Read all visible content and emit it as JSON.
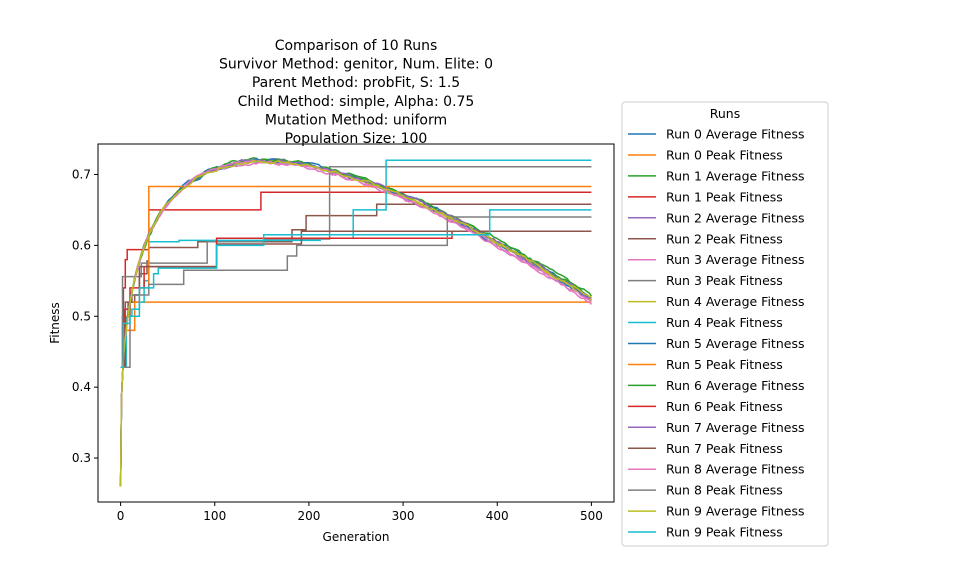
{
  "chart_data": {
    "type": "line",
    "title_lines": [
      "Comparison of 10 Runs",
      "Survivor Method: genitor, Num. Elite: 0",
      "Parent Method: probFit, S: 1.5",
      "Child Method: simple, Alpha: 0.75",
      "Mutation Method: uniform",
      "Population Size: 100"
    ],
    "xlabel": "Generation",
    "ylabel": "Fitness",
    "xlim": [
      -24,
      524
    ],
    "ylim": [
      0.238,
      0.743
    ],
    "xticks": [
      0,
      100,
      200,
      300,
      400,
      500
    ],
    "yticks": [
      0.3,
      0.4,
      0.5,
      0.6,
      0.7
    ],
    "grid": false,
    "legend": {
      "title": "Runs",
      "placement": "outside-right"
    },
    "series": [
      {
        "name": "Run 0 Average Fitness",
        "color": "#1f77b4",
        "kind": "avg",
        "end": 0.522
      },
      {
        "name": "Run 0 Peak Fitness",
        "color": "#ff7f0e",
        "kind": "peak",
        "points": [
          [
            0,
            0.428
          ],
          [
            5,
            0.48
          ],
          [
            15,
            0.52
          ],
          [
            500,
            0.52
          ]
        ]
      },
      {
        "name": "Run 1 Average Fitness",
        "color": "#2ca02c",
        "kind": "avg",
        "end": 0.528
      },
      {
        "name": "Run 1 Peak Fitness",
        "color": "#d62728",
        "kind": "peak",
        "points": [
          [
            0,
            0.428
          ],
          [
            2,
            0.5
          ],
          [
            3,
            0.54
          ],
          [
            5,
            0.58
          ],
          [
            7,
            0.594
          ],
          [
            28,
            0.594
          ],
          [
            30,
            0.65
          ],
          [
            147,
            0.65
          ],
          [
            149,
            0.675
          ],
          [
            500,
            0.675
          ]
        ]
      },
      {
        "name": "Run 2 Average Fitness",
        "color": "#9467bd",
        "kind": "avg",
        "end": 0.524
      },
      {
        "name": "Run 2 Peak Fitness",
        "color": "#8c564b",
        "kind": "peak",
        "points": [
          [
            0,
            0.428
          ],
          [
            3,
            0.5
          ],
          [
            8,
            0.52
          ],
          [
            15,
            0.53
          ],
          [
            20,
            0.56
          ],
          [
            28,
            0.578
          ],
          [
            30,
            0.597
          ],
          [
            80,
            0.597
          ],
          [
            82,
            0.605
          ],
          [
            180,
            0.605
          ],
          [
            182,
            0.622
          ],
          [
            195,
            0.622
          ],
          [
            197,
            0.642
          ],
          [
            270,
            0.642
          ],
          [
            272,
            0.658
          ],
          [
            500,
            0.658
          ]
        ]
      },
      {
        "name": "Run 3 Average Fitness",
        "color": "#e377c2",
        "kind": "avg",
        "end": 0.518
      },
      {
        "name": "Run 3 Peak Fitness",
        "color": "#7f7f7f",
        "kind": "peak",
        "points": [
          [
            0,
            0.428
          ],
          [
            2,
            0.556
          ],
          [
            20,
            0.556
          ],
          [
            22,
            0.575
          ],
          [
            90,
            0.575
          ],
          [
            92,
            0.605
          ],
          [
            150,
            0.605
          ],
          [
            152,
            0.609
          ],
          [
            220,
            0.609
          ],
          [
            222,
            0.711
          ],
          [
            500,
            0.711
          ]
        ]
      },
      {
        "name": "Run 4 Average Fitness",
        "color": "#bcbd22",
        "kind": "avg",
        "end": 0.523
      },
      {
        "name": "Run 4 Peak Fitness",
        "color": "#17becf",
        "kind": "peak",
        "points": [
          [
            0,
            0.428
          ],
          [
            6,
            0.5
          ],
          [
            12,
            0.51
          ],
          [
            20,
            0.52
          ],
          [
            25,
            0.55
          ],
          [
            30,
            0.605
          ],
          [
            60,
            0.605
          ],
          [
            62,
            0.607
          ],
          [
            210,
            0.607
          ],
          [
            212,
            0.61
          ],
          [
            245,
            0.61
          ],
          [
            247,
            0.65
          ],
          [
            280,
            0.65
          ],
          [
            282,
            0.72
          ],
          [
            500,
            0.72
          ]
        ]
      },
      {
        "name": "Run 5 Average Fitness",
        "color": "#1f77b4",
        "kind": "avg",
        "end": 0.527
      },
      {
        "name": "Run 5 Peak Fitness",
        "color": "#ff7f0e",
        "kind": "peak",
        "points": [
          [
            0,
            0.428
          ],
          [
            4,
            0.5
          ],
          [
            10,
            0.52
          ],
          [
            20,
            0.54
          ],
          [
            30,
            0.683
          ],
          [
            500,
            0.683
          ]
        ]
      },
      {
        "name": "Run 6 Average Fitness",
        "color": "#2ca02c",
        "kind": "avg",
        "end": 0.529
      },
      {
        "name": "Run 6 Peak Fitness",
        "color": "#d62728",
        "kind": "peak",
        "points": [
          [
            0,
            0.428
          ],
          [
            4,
            0.51
          ],
          [
            10,
            0.54
          ],
          [
            25,
            0.57
          ],
          [
            100,
            0.57
          ],
          [
            102,
            0.61
          ],
          [
            350,
            0.61
          ],
          [
            352,
            0.62
          ],
          [
            500,
            0.62
          ]
        ]
      },
      {
        "name": "Run 7 Average Fitness",
        "color": "#9467bd",
        "kind": "avg",
        "end": 0.526
      },
      {
        "name": "Run 7 Peak Fitness",
        "color": "#8c564b",
        "kind": "peak",
        "points": [
          [
            0,
            0.428
          ],
          [
            5,
            0.52
          ],
          [
            12,
            0.53
          ],
          [
            20,
            0.57
          ],
          [
            100,
            0.57
          ],
          [
            102,
            0.602
          ],
          [
            190,
            0.602
          ],
          [
            192,
            0.62
          ],
          [
            500,
            0.62
          ]
        ]
      },
      {
        "name": "Run 8 Average Fitness",
        "color": "#e377c2",
        "kind": "avg",
        "end": 0.519
      },
      {
        "name": "Run 8 Peak Fitness",
        "color": "#7f7f7f",
        "kind": "peak",
        "points": [
          [
            0,
            0.428
          ],
          [
            10,
            0.53
          ],
          [
            30,
            0.545
          ],
          [
            65,
            0.545
          ],
          [
            67,
            0.565
          ],
          [
            175,
            0.565
          ],
          [
            177,
            0.585
          ],
          [
            185,
            0.585
          ],
          [
            187,
            0.6
          ],
          [
            345,
            0.6
          ],
          [
            347,
            0.64
          ],
          [
            500,
            0.64
          ]
        ]
      },
      {
        "name": "Run 9 Average Fitness",
        "color": "#bcbd22",
        "kind": "avg",
        "end": 0.525
      },
      {
        "name": "Run 9 Peak Fitness",
        "color": "#17becf",
        "kind": "peak",
        "points": [
          [
            0,
            0.428
          ],
          [
            3,
            0.49
          ],
          [
            10,
            0.5
          ],
          [
            20,
            0.54
          ],
          [
            35,
            0.56
          ],
          [
            40,
            0.568
          ],
          [
            100,
            0.568
          ],
          [
            102,
            0.6
          ],
          [
            150,
            0.6
          ],
          [
            152,
            0.615
          ],
          [
            390,
            0.615
          ],
          [
            392,
            0.65
          ],
          [
            500,
            0.65
          ]
        ]
      }
    ]
  }
}
